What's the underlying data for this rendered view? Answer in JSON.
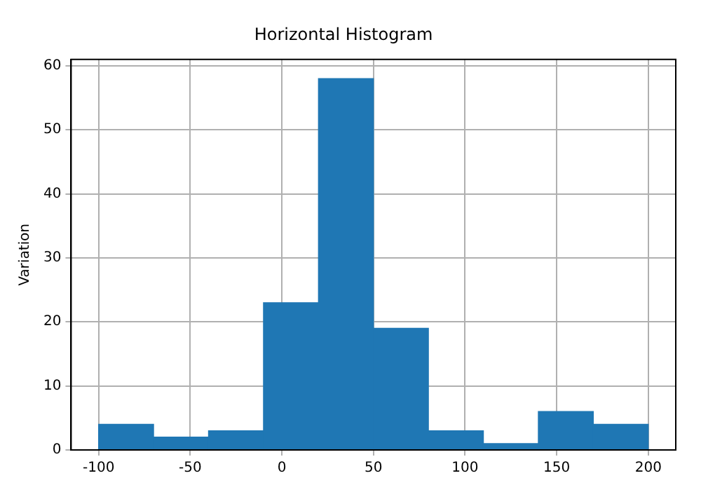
{
  "chart_data": {
    "type": "histogram",
    "title": "Horizontal Histogram",
    "ylabel": "Variation",
    "bins": [
      -100,
      -70,
      -40,
      -10,
      20,
      50,
      80,
      110,
      140,
      170,
      200
    ],
    "values": [
      4,
      2,
      3,
      23,
      58,
      19,
      3,
      1,
      6,
      4
    ],
    "color": "#1f77b4",
    "xlim": [
      -115,
      215
    ],
    "xticks": [
      -100,
      -50,
      0,
      50,
      100,
      150,
      200
    ],
    "ylim": [
      0,
      61
    ],
    "yticks": [
      0,
      10,
      20,
      30,
      40,
      50,
      60
    ],
    "grid": true
  }
}
